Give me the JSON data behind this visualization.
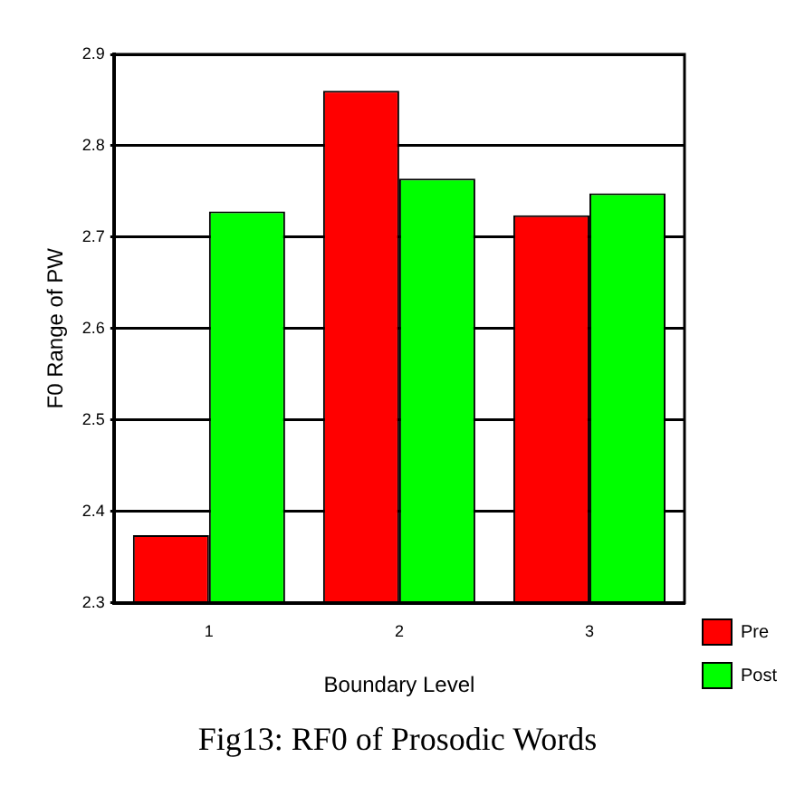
{
  "chart_data": {
    "type": "bar",
    "xlabel": "Boundary Level",
    "ylabel": "F0 Range of PW",
    "categories": [
      "1",
      "2",
      "3"
    ],
    "series": [
      {
        "name": "Pre",
        "color": "#ff0000",
        "values": [
          2.374,
          2.86,
          2.724
        ]
      },
      {
        "name": "Post",
        "color": "#00ff00",
        "values": [
          2.728,
          2.764,
          2.748
        ]
      }
    ],
    "ylim": [
      2.3,
      2.9
    ],
    "yticks": [
      2.3,
      2.4,
      2.5,
      2.6,
      2.7,
      2.8,
      2.9
    ],
    "grid": "y",
    "legend": "bottom right",
    "annotations": [
      "Fig13: RF0 of Prosodic Words"
    ]
  }
}
